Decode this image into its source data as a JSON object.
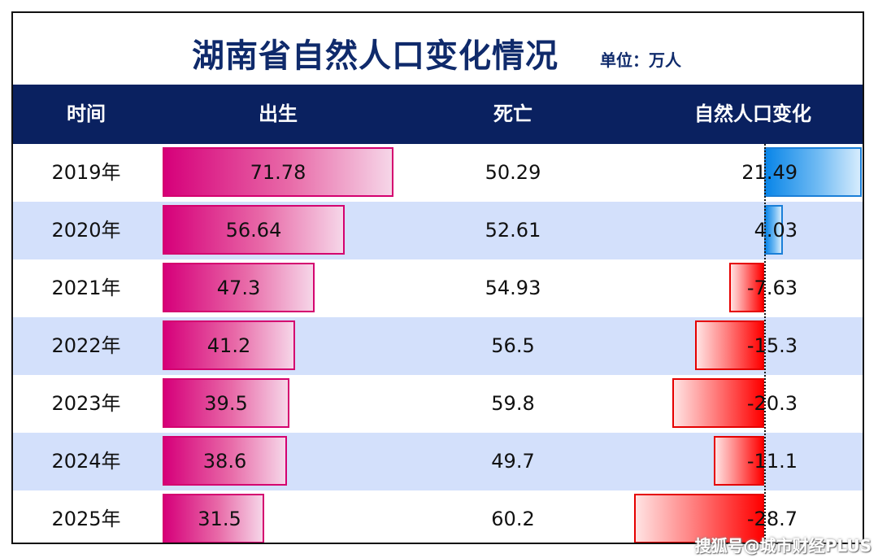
{
  "title": "湖南省自然人口变化情况",
  "unit": "单位：万人",
  "headers": {
    "year": "时间",
    "birth": "出生",
    "death": "死亡",
    "change": "自然人口变化"
  },
  "watermark": "搜狐号@城市财经PLUS",
  "colors": {
    "header_bg": "#0a2160",
    "title": "#0f2a6b",
    "birth_bar": "#d6007a",
    "change_positive": "#0a86e8",
    "change_negative": "#ff0000",
    "alt_row": "#d3e0fb"
  },
  "chart_data": {
    "type": "table",
    "categories": [
      "2019年",
      "2020年",
      "2021年",
      "2022年",
      "2023年",
      "2024年",
      "2025年"
    ],
    "series": [
      {
        "name": "出生",
        "values": [
          71.78,
          56.64,
          47.3,
          41.2,
          39.5,
          38.6,
          31.5
        ]
      },
      {
        "name": "死亡",
        "values": [
          50.29,
          52.61,
          54.93,
          56.5,
          59.8,
          49.7,
          60.2
        ]
      },
      {
        "name": "自然人口变化",
        "values": [
          21.49,
          4.03,
          -7.63,
          -15.3,
          -20.3,
          -11.1,
          -28.7
        ]
      }
    ],
    "title": "湖南省自然人口变化情况",
    "grid": false
  }
}
